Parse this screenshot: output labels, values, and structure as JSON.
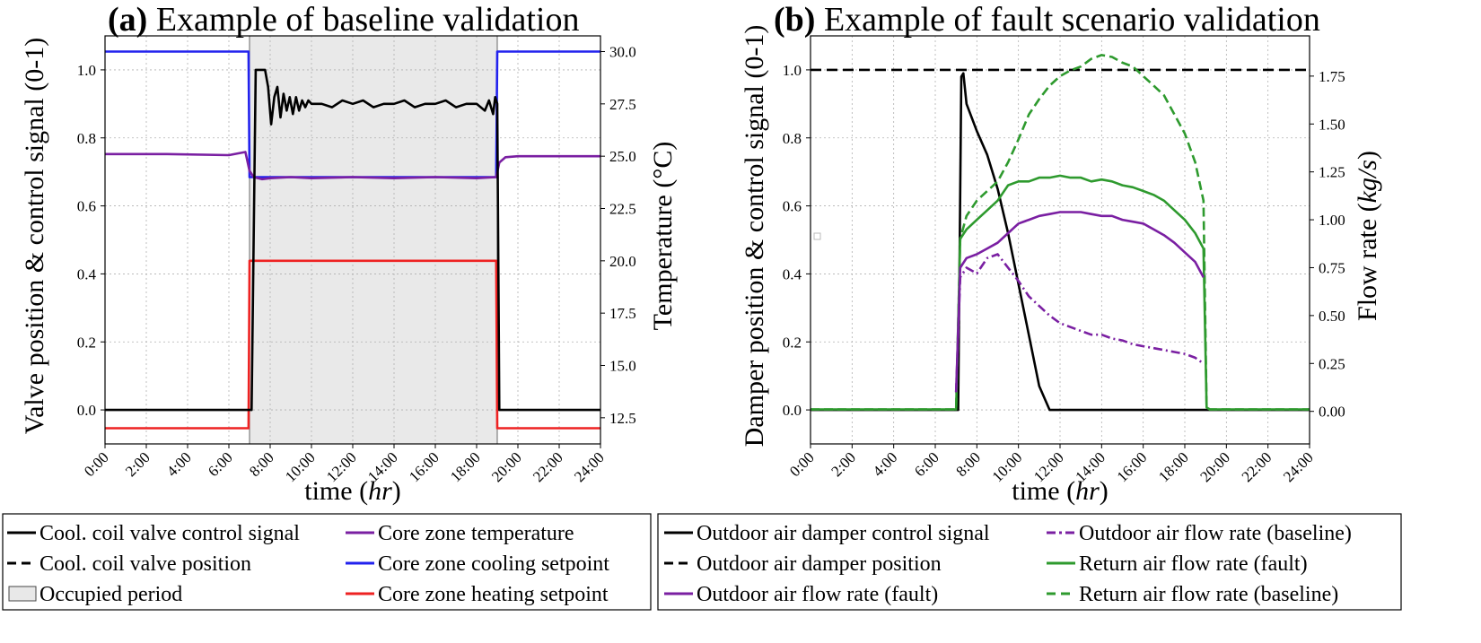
{
  "chart_data": [
    {
      "type": "line",
      "panel": "a",
      "title_prefix": "(a)",
      "title": "Example of baseline validation",
      "xlabel_main": "time (",
      "xlabel_unit": "hr",
      "xlabel_close": ")",
      "ylabel": "Valve position & control signal (0-1)",
      "y2label": "Temperature (°C)",
      "xlim": [
        0,
        24
      ],
      "ylim": [
        -0.1,
        1.1
      ],
      "y2lim": [
        11.25,
        30.75
      ],
      "x_ticks": [
        0,
        2,
        4,
        6,
        8,
        10,
        12,
        14,
        16,
        18,
        20,
        22,
        24
      ],
      "x_tick_labels": [
        "0:00",
        "2:00",
        "4:00",
        "6:00",
        "8:00",
        "10:00",
        "12:00",
        "14:00",
        "16:00",
        "18:00",
        "20:00",
        "22:00",
        "24:00"
      ],
      "y_ticks": [
        0.0,
        0.2,
        0.4,
        0.6,
        0.8,
        1.0
      ],
      "y_tick_labels": [
        "0.0",
        "0.2",
        "0.4",
        "0.6",
        "0.8",
        "1.0"
      ],
      "y2_ticks": [
        12.5,
        15.0,
        17.5,
        20.0,
        22.5,
        25.0,
        27.5,
        30.0
      ],
      "y2_tick_labels": [
        "12.5",
        "15.0",
        "17.5",
        "20.0",
        "22.5",
        "25.0",
        "27.5",
        "30.0"
      ],
      "grid": true,
      "occupied_period": [
        7,
        19
      ],
      "series": [
        {
          "name": "Core zone cooling setpoint",
          "axis": "right",
          "color": "#2222ee",
          "x": [
            0,
            6.95,
            7.0,
            18.95,
            19.0,
            24
          ],
          "y": [
            30,
            30,
            24,
            24,
            30,
            30
          ]
        },
        {
          "name": "Core zone heating setpoint",
          "axis": "right",
          "color": "#ee2222",
          "x": [
            0,
            6.95,
            7.0,
            18.95,
            19.0,
            24
          ],
          "y": [
            12,
            12,
            20,
            20,
            12,
            12
          ]
        },
        {
          "name": "Core zone temperature",
          "axis": "right",
          "color": "#7a1fa2",
          "x": [
            0,
            3,
            6,
            6.8,
            7.0,
            7.2,
            7.6,
            8.0,
            9,
            10,
            12,
            14,
            16,
            18,
            18.95,
            19.1,
            19.4,
            20,
            24
          ],
          "y": [
            25.1,
            25.1,
            25.05,
            25.2,
            24.3,
            24.0,
            23.9,
            23.95,
            24.0,
            23.95,
            24.0,
            23.95,
            24.0,
            23.95,
            24.0,
            24.7,
            24.95,
            25.0,
            25.0
          ]
        },
        {
          "name": "Cool. coil valve control signal",
          "axis": "left",
          "color": "#000000",
          "x": [
            0,
            7.1,
            7.3,
            7.5,
            7.75,
            7.9,
            8.05,
            8.2,
            8.35,
            8.5,
            8.65,
            8.8,
            8.95,
            9.1,
            9.25,
            9.4,
            9.55,
            9.7,
            9.85,
            10.0,
            10.5,
            11.0,
            11.5,
            12.0,
            12.5,
            13.0,
            13.5,
            14.0,
            14.5,
            15.0,
            15.5,
            16.0,
            16.5,
            17.0,
            17.5,
            18.0,
            18.4,
            18.6,
            18.8,
            18.9,
            19.0,
            19.1,
            24
          ],
          "y": [
            0,
            0,
            1.0,
            1.0,
            1.0,
            0.95,
            0.84,
            0.92,
            0.95,
            0.86,
            0.93,
            0.88,
            0.92,
            0.87,
            0.92,
            0.88,
            0.91,
            0.89,
            0.91,
            0.9,
            0.9,
            0.89,
            0.91,
            0.9,
            0.91,
            0.89,
            0.9,
            0.9,
            0.91,
            0.89,
            0.9,
            0.9,
            0.91,
            0.89,
            0.9,
            0.9,
            0.88,
            0.91,
            0.87,
            0.92,
            0.9,
            0,
            0
          ]
        }
      ],
      "legend": {
        "placement": "bottom-left",
        "entries": [
          {
            "label": "Cool. coil valve control signal",
            "style": "line-solid",
            "color": "#000000"
          },
          {
            "label": "Core zone temperature",
            "style": "line-solid",
            "color": "#7a1fa2"
          },
          {
            "label": "Cool. coil valve position",
            "style": "line-dashed",
            "color": "#000000"
          },
          {
            "label": "Core zone cooling setpoint",
            "style": "line-solid",
            "color": "#2222ee"
          },
          {
            "label": "Occupied period",
            "style": "patch",
            "color": "#e8e8e8"
          },
          {
            "label": "Core zone heating setpoint",
            "style": "line-solid",
            "color": "#ee2222"
          }
        ]
      }
    },
    {
      "type": "line",
      "panel": "b",
      "title_prefix": "(b)",
      "title": "Example of fault scenario validation",
      "xlabel_main": "time (",
      "xlabel_unit": "hr",
      "xlabel_close": ")",
      "ylabel": "Damper position & control signal (0-1)",
      "y2label_main": "Flow rate (",
      "y2label_unit": "kg/s",
      "y2label_close": ")",
      "xlim": [
        0,
        24
      ],
      "ylim": [
        -0.1,
        1.1
      ],
      "y2lim": [
        -0.17,
        1.96
      ],
      "x_ticks": [
        0,
        2,
        4,
        6,
        8,
        10,
        12,
        14,
        16,
        18,
        20,
        22,
        24
      ],
      "x_tick_labels": [
        "0:00",
        "2:00",
        "4:00",
        "6:00",
        "8:00",
        "10:00",
        "12:00",
        "14:00",
        "16:00",
        "18:00",
        "20:00",
        "22:00",
        "24:00"
      ],
      "y_ticks": [
        0.0,
        0.2,
        0.4,
        0.6,
        0.8,
        1.0
      ],
      "y_tick_labels": [
        "0.0",
        "0.2",
        "0.4",
        "0.6",
        "0.8",
        "1.0"
      ],
      "y2_ticks": [
        0.0,
        0.25,
        0.5,
        0.75,
        1.0,
        1.25,
        1.5,
        1.75
      ],
      "y2_tick_labels": [
        "0.00",
        "0.25",
        "0.50",
        "0.75",
        "1.00",
        "1.25",
        "1.50",
        "1.75"
      ],
      "grid": true,
      "series": [
        {
          "name": "Outdoor air damper position",
          "axis": "left",
          "color": "#000000",
          "dash": "12,6",
          "x": [
            0,
            24
          ],
          "y": [
            1.0,
            1.0
          ]
        },
        {
          "name": "Outdoor air damper control signal",
          "axis": "left",
          "color": "#000000",
          "x": [
            0,
            7.1,
            7.25,
            7.35,
            7.5,
            8,
            8.5,
            9,
            9.5,
            10,
            10.5,
            11,
            11.5,
            24
          ],
          "y": [
            0,
            0,
            0.98,
            0.99,
            0.9,
            0.82,
            0.75,
            0.65,
            0.52,
            0.37,
            0.22,
            0.07,
            0,
            0
          ]
        },
        {
          "name": "Return air flow rate (baseline)",
          "axis": "right",
          "color": "#2e9a2e",
          "dash": "10,5",
          "x": [
            0,
            7.0,
            7.2,
            7.5,
            8,
            8.5,
            9,
            9.5,
            10,
            10.5,
            11,
            11.5,
            12,
            12.5,
            13,
            13.5,
            14,
            14.5,
            15,
            15.5,
            16,
            16.5,
            17,
            17.5,
            18,
            18.5,
            18.9,
            19.05,
            19.2,
            24
          ],
          "y": [
            0.01,
            0.01,
            0.9,
            1.02,
            1.1,
            1.15,
            1.2,
            1.3,
            1.42,
            1.55,
            1.63,
            1.7,
            1.75,
            1.78,
            1.8,
            1.84,
            1.86,
            1.85,
            1.82,
            1.8,
            1.75,
            1.7,
            1.65,
            1.55,
            1.45,
            1.3,
            1.1,
            0.02,
            0.01,
            0.01
          ]
        },
        {
          "name": "Return air flow rate (fault)",
          "axis": "right",
          "color": "#2e9a2e",
          "x": [
            0,
            7.0,
            7.2,
            7.5,
            8,
            8.5,
            9,
            9.5,
            10,
            10.5,
            11,
            11.5,
            12,
            12.5,
            13,
            13.5,
            14,
            14.5,
            15,
            15.5,
            16,
            16.5,
            17,
            17.5,
            18,
            18.5,
            18.9,
            19.05,
            19.2,
            24
          ],
          "y": [
            0.01,
            0.01,
            0.9,
            0.95,
            1.0,
            1.05,
            1.1,
            1.18,
            1.2,
            1.2,
            1.22,
            1.22,
            1.23,
            1.22,
            1.22,
            1.2,
            1.21,
            1.2,
            1.18,
            1.17,
            1.15,
            1.13,
            1.1,
            1.05,
            1.0,
            0.93,
            0.85,
            0.02,
            0.01,
            0.01
          ]
        },
        {
          "name": "Outdoor air flow rate (fault)",
          "axis": "right",
          "color": "#7a1fa2",
          "x": [
            7.0,
            7.2,
            7.5,
            8,
            8.5,
            9,
            9.5,
            10,
            10.5,
            11,
            11.5,
            12,
            12.5,
            13,
            13.5,
            14,
            14.5,
            15,
            15.5,
            16,
            16.5,
            17,
            17.5,
            18,
            18.5,
            18.9
          ],
          "y": [
            0.1,
            0.75,
            0.8,
            0.82,
            0.85,
            0.88,
            0.93,
            0.98,
            1.0,
            1.02,
            1.03,
            1.04,
            1.04,
            1.04,
            1.03,
            1.02,
            1.02,
            1.0,
            0.99,
            0.98,
            0.95,
            0.92,
            0.88,
            0.83,
            0.78,
            0.7
          ]
        },
        {
          "name": "Outdoor air flow rate (baseline)",
          "axis": "right",
          "color": "#7a1fa2",
          "dash": "10,4,2,4",
          "x": [
            7.0,
            7.2,
            7.5,
            8,
            8.5,
            9,
            9.5,
            10,
            10.5,
            11,
            11.5,
            12,
            12.5,
            13,
            13.5,
            14,
            14.5,
            15,
            15.5,
            16,
            16.5,
            17,
            17.5,
            18,
            18.5,
            18.9
          ],
          "y": [
            0.1,
            0.7,
            0.75,
            0.72,
            0.8,
            0.82,
            0.75,
            0.68,
            0.6,
            0.55,
            0.5,
            0.46,
            0.44,
            0.42,
            0.4,
            0.4,
            0.38,
            0.37,
            0.35,
            0.34,
            0.33,
            0.32,
            0.31,
            0.3,
            0.28,
            0.25
          ]
        }
      ],
      "legend": {
        "placement": "bottom-right",
        "entries": [
          {
            "label": "Outdoor air damper control signal",
            "style": "line-solid",
            "color": "#000000"
          },
          {
            "label": "Outdoor air flow rate (baseline)",
            "style": "line-dashdot",
            "color": "#7a1fa2"
          },
          {
            "label": "Outdoor air damper position",
            "style": "line-dashed",
            "color": "#000000"
          },
          {
            "label": "Return air flow rate (fault)",
            "style": "line-solid",
            "color": "#2e9a2e"
          },
          {
            "label": "Outdoor air flow rate (fault)",
            "style": "line-solid",
            "color": "#7a1fa2"
          },
          {
            "label": "Return air flow rate (baseline)",
            "style": "line-dashed",
            "color": "#2e9a2e"
          }
        ]
      }
    }
  ]
}
